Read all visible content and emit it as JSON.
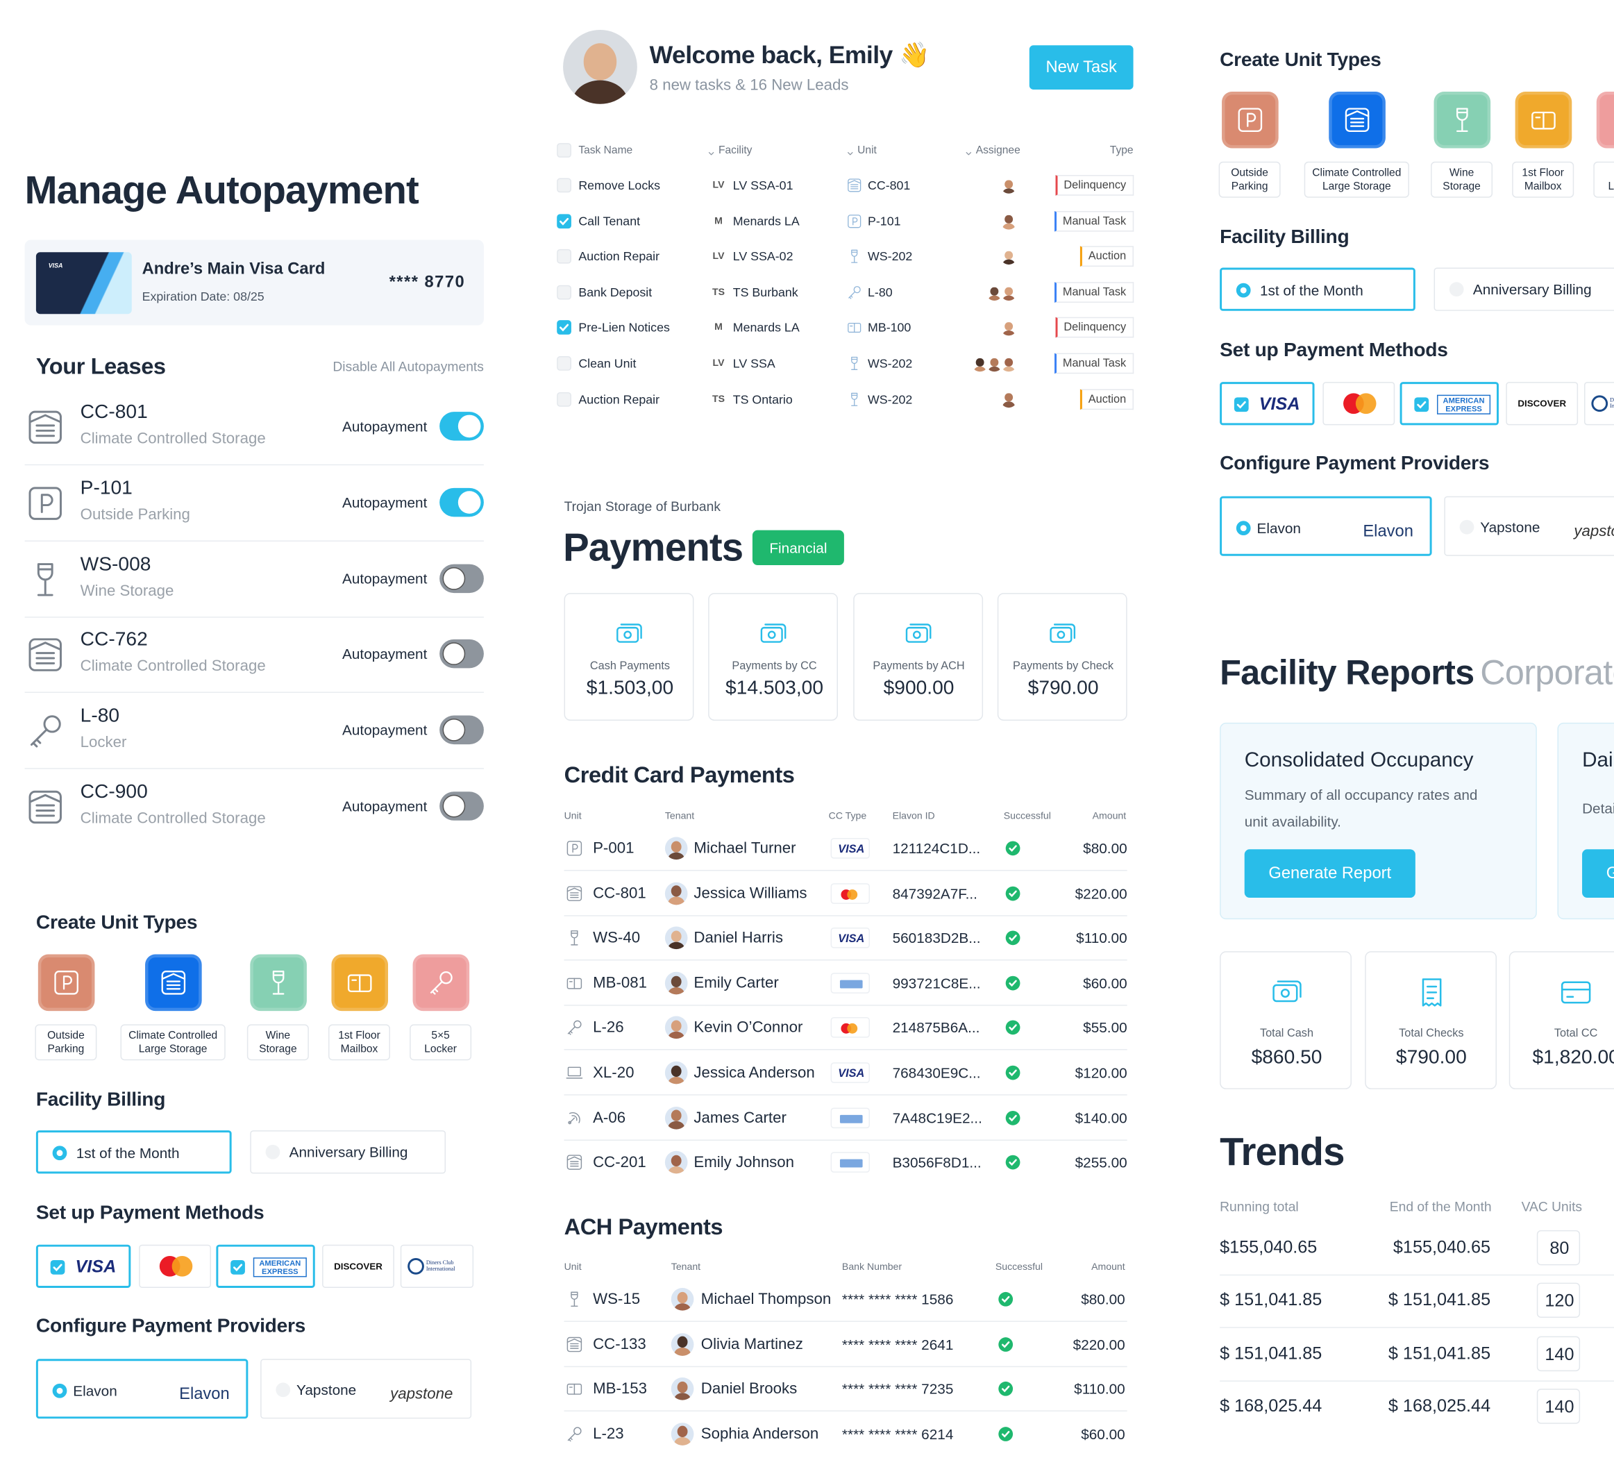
{
  "autopay": {
    "title": "Manage Autopayment",
    "card": {
      "brand": "VISA",
      "name": "Andre’s Main Visa Card",
      "expiration": "Expiration Date: 08/25",
      "number": "**** 8770"
    },
    "leases_title": "Your Leases",
    "disable_all": "Disable All Autopayments",
    "toggle_label": "Autopayment",
    "leases": [
      {
        "unit": "CC-801",
        "type": "Climate Controlled Storage",
        "on": true
      },
      {
        "unit": "P-101",
        "type": "Outside Parking",
        "on": true
      },
      {
        "unit": "WS-008",
        "type": "Wine Storage",
        "on": false
      },
      {
        "unit": "CC-762",
        "type": "Climate Controlled Storage",
        "on": false
      },
      {
        "unit": "L-80",
        "type": "Locker",
        "on": false
      },
      {
        "unit": "CC-900",
        "type": "Climate Controlled Storage",
        "on": false
      }
    ]
  },
  "setup": {
    "unit_types_title": "Create Unit Types",
    "unit_types": [
      {
        "label": "Outside Parking",
        "color": "#d98a70"
      },
      {
        "label": "Climate Controlled Large Storage",
        "color": "#0f6fe8"
      },
      {
        "label": "Wine Storage",
        "color": "#86d0b3"
      },
      {
        "label": "1st Floor Mailbox",
        "color": "#f0a92c"
      },
      {
        "label": "5×5 Locker",
        "color": "#ee9d9d"
      }
    ],
    "billing_title": "Facility Billing",
    "billing": [
      {
        "label": "1st of the Month",
        "selected": true
      },
      {
        "label": "Anniversary Billing",
        "selected": false
      }
    ],
    "methods_title": "Set up Payment Methods",
    "methods": [
      {
        "label": "VISA",
        "checked": true
      },
      {
        "label": null,
        "checked": false
      },
      {
        "label": "AMERICAN EXPRESS",
        "checked": true
      },
      {
        "label": "DISCOVER",
        "checked": false
      },
      {
        "label": "Diners Club International",
        "checked": false
      }
    ],
    "providers_title": "Configure Payment Providers",
    "providers": [
      {
        "name": "Elavon",
        "logo": "Elavon",
        "selected": true
      },
      {
        "name": "Yapstone",
        "logo": "yapstone",
        "selected": false
      }
    ]
  },
  "dashboard": {
    "welcome": "Welcome back, Emily 👋",
    "subtitle": "8 new tasks & 16 New Leads",
    "new_task": "New Task",
    "task_columns": [
      "Task Name",
      "Facility",
      "Unit",
      "Assignee",
      "Type"
    ],
    "tasks": [
      {
        "done": false,
        "name": "Remove Locks",
        "facility_code": "LV",
        "facility": "LV SSA-01",
        "unit": "CC-801",
        "type": "Delinquency",
        "type_color": "#e5484d"
      },
      {
        "done": true,
        "name": "Call Tenant",
        "facility_code": "M",
        "facility": "Menards LA",
        "unit": "P-101",
        "type": "Manual Task",
        "type_color": "#3b82f6"
      },
      {
        "done": false,
        "name": "Auction Repair",
        "facility_code": "LV",
        "facility": "LV SSA-02",
        "unit": "WS-202",
        "type": "Auction",
        "type_color": "#f59e0b"
      },
      {
        "done": false,
        "name": "Bank Deposit",
        "facility_code": "TS",
        "facility": "TS Burbank",
        "unit": "L-80",
        "type": "Manual Task",
        "type_color": "#3b82f6"
      },
      {
        "done": true,
        "name": "Pre-Lien Notices",
        "facility_code": "M",
        "facility": "Menards LA",
        "unit": "MB-100",
        "type": "Delinquency",
        "type_color": "#e5484d"
      },
      {
        "done": false,
        "name": "Clean Unit",
        "facility_code": "LV",
        "facility": "LV SSA",
        "unit": "WS-202",
        "type": "Manual Task",
        "type_color": "#3b82f6"
      },
      {
        "done": false,
        "name": "Auction Repair",
        "facility_code": "TS",
        "facility": "TS Ontario",
        "unit": "WS-202",
        "type": "Auction",
        "type_color": "#f59e0b"
      }
    ]
  },
  "payments": {
    "facility": "Trojan Storage of Burbank",
    "title": "Payments",
    "badge": "Financial",
    "stats": [
      {
        "label": "Cash Payments",
        "amount": "$1.503,00"
      },
      {
        "label": "Payments by CC",
        "amount": "$14.503,00"
      },
      {
        "label": "Payments by ACH",
        "amount": "$900.00"
      },
      {
        "label": "Payments by Check",
        "amount": "$790.00"
      }
    ],
    "cc_title": "Credit Card Payments",
    "cc_columns": [
      "Unit",
      "Tenant",
      "CC Type",
      "Elavon ID",
      "Successful",
      "Amount"
    ],
    "cc_rows": [
      {
        "unit": "P-001",
        "tenant": "Michael Turner",
        "elavon_id": "121124C1D...",
        "successful": true,
        "amount": "$80.00"
      },
      {
        "unit": "CC-801",
        "tenant": "Jessica Williams",
        "elavon_id": "847392A7F...",
        "successful": true,
        "amount": "$220.00"
      },
      {
        "unit": "WS-40",
        "tenant": "Daniel Harris",
        "elavon_id": "560183D2B...",
        "successful": true,
        "amount": "$110.00"
      },
      {
        "unit": "MB-081",
        "tenant": "Emily Carter",
        "elavon_id": "993721C8E...",
        "successful": true,
        "amount": "$60.00"
      },
      {
        "unit": "L-26",
        "tenant": "Kevin O’Connor",
        "elavon_id": "214875B6A...",
        "successful": true,
        "amount": "$55.00"
      },
      {
        "unit": "XL-20",
        "tenant": "Jessica Anderson",
        "elavon_id": "768430E9C...",
        "successful": true,
        "amount": "$120.00"
      },
      {
        "unit": "A-06",
        "tenant": "James Carter",
        "elavon_id": "7A48C19E2...",
        "successful": true,
        "amount": "$140.00"
      },
      {
        "unit": "CC-201",
        "tenant": "Emily Johnson",
        "elavon_id": "B3056F8D1...",
        "successful": true,
        "amount": "$255.00"
      }
    ],
    "ach_title": "ACH Payments",
    "ach_columns": [
      "Unit",
      "Tenant",
      "Bank Number",
      "Successful",
      "Amount"
    ],
    "ach_rows": [
      {
        "unit": "WS-15",
        "tenant": "Michael Thompson",
        "bank_number": "**** **** **** 1586",
        "successful": true,
        "amount": "$80.00"
      },
      {
        "unit": "CC-133",
        "tenant": "Olivia Martinez",
        "bank_number": "**** **** **** 2641",
        "successful": true,
        "amount": "$220.00"
      },
      {
        "unit": "MB-153",
        "tenant": "Daniel Brooks",
        "bank_number": "**** **** **** 7235",
        "successful": true,
        "amount": "$110.00"
      },
      {
        "unit": "L-23",
        "tenant": "Sophia Anderson",
        "bank_number": "**** **** **** 6214",
        "successful": true,
        "amount": "$60.00"
      }
    ]
  },
  "reports": {
    "title": "Facility Reports",
    "tab": "Corporate",
    "cards": [
      {
        "title": "Consolidated Occupancy",
        "description": "Summary of all occupancy rates and unit availability.",
        "button": "Generate Report"
      },
      {
        "title": "Daily Activity",
        "description": "Detailed activity from yesterday.",
        "button": "Generate Report"
      }
    ],
    "totals": [
      {
        "label": "Total Cash",
        "amount": "$860.50"
      },
      {
        "label": "Total Checks",
        "amount": "$790.00"
      },
      {
        "label": "Total CC",
        "amount": "$1,820.00"
      }
    ],
    "trends_title": "Trends",
    "trends_columns": [
      "Running total",
      "End of the Month",
      "VAC Units"
    ],
    "trends": [
      [
        "$155,040.65",
        "$155,040.65",
        80
      ],
      [
        "$ 151,041.85",
        "$ 151,041.85",
        120
      ],
      [
        "$ 151,041.85",
        "$ 151,041.85",
        140
      ],
      [
        "$ 168,025.44",
        "$ 168,025.44",
        140
      ]
    ]
  }
}
